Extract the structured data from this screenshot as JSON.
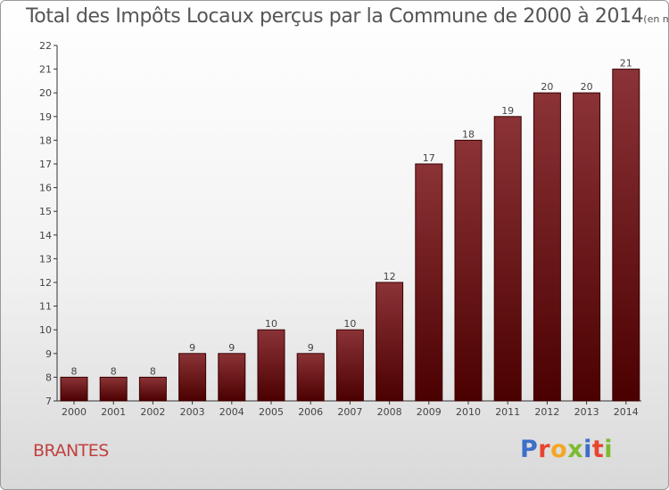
{
  "header": {
    "title": "Total des Impôts Locaux perçus par la Commune de 2000 à 2014",
    "unit": "(en milliers d'€)"
  },
  "footer": {
    "commune": "BRANTES",
    "brand": "Proxiti"
  },
  "colors": {
    "bar_light": "#8b3337",
    "bar_dark": "#4b0000",
    "commune": "#c0413f",
    "brand_letters": [
      "#3d6fc9",
      "#e8442e",
      "#f5a623",
      "#7dbb2e",
      "#3d6fc9",
      "#e8442e",
      "#7dbb2e"
    ]
  },
  "chart_data": {
    "type": "bar",
    "title": "Total des Impôts Locaux perçus par la Commune de 2000 à 2014",
    "categories": [
      "2000",
      "2001",
      "2002",
      "2003",
      "2004",
      "2005",
      "2006",
      "2007",
      "2008",
      "2009",
      "2010",
      "2011",
      "2012",
      "2013",
      "2014"
    ],
    "values": [
      8,
      8,
      8,
      9,
      9,
      10,
      9,
      10,
      12,
      17,
      18,
      19,
      20,
      20,
      21
    ],
    "ylim": [
      7,
      22
    ],
    "yticks": [
      7,
      8,
      9,
      10,
      11,
      12,
      13,
      14,
      15,
      16,
      17,
      18,
      19,
      20,
      21,
      22
    ],
    "grid": false,
    "legend": "none",
    "data_labels": true
  }
}
